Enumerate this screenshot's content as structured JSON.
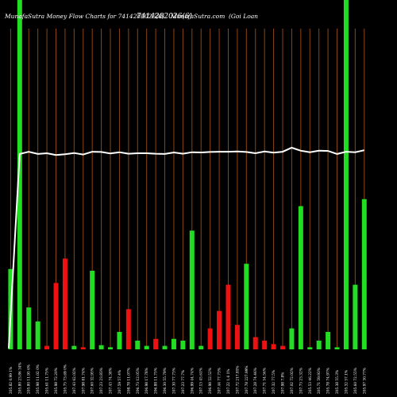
{
  "title": {
    "left": "MunafaSutra  Money Flow  Charts for 7414282026(6)",
    "overlap": "7414282026(6)",
    "site": "MunafaSutra.com",
    "right": "(Goi   Loan"
  },
  "colors": {
    "background": "#000000",
    "gridline": "#8b4513",
    "up": "#22dd22",
    "down": "#ee1111",
    "line": "#ffffff",
    "text": "#ffffff"
  },
  "chart_data": {
    "type": "bar",
    "price_line": [
      0.4,
      77.5,
      78.4,
      77.5,
      77.8,
      77.1,
      77.4,
      77.9,
      77.3,
      78.4,
      78.3,
      77.7,
      78.2,
      77.6,
      77.8,
      77.8,
      77.6,
      77.5,
      78.1,
      77.6,
      78.2,
      78.1,
      78.3,
      78.4,
      78.4,
      78.5,
      78.3,
      77.8,
      78.5,
      78.0,
      78.4,
      80.0,
      78.8,
      78.2,
      78.8,
      78.7,
      77.5,
      78.4,
      78.2,
      79.0
    ],
    "bars": [
      {
        "v": 23,
        "c": "up"
      },
      {
        "v": 100,
        "c": "up"
      },
      {
        "v": 12,
        "c": "up"
      },
      {
        "v": 8,
        "c": "up"
      },
      {
        "v": 1,
        "c": "down"
      },
      {
        "v": 19,
        "c": "down"
      },
      {
        "v": 26,
        "c": "down"
      },
      {
        "v": 1,
        "c": "up"
      },
      {
        "v": 0.6,
        "c": "down"
      },
      {
        "v": 22.5,
        "c": "up"
      },
      {
        "v": 1.2,
        "c": "up"
      },
      {
        "v": 0.6,
        "c": "up"
      },
      {
        "v": 5,
        "c": "up"
      },
      {
        "v": 11.5,
        "c": "down"
      },
      {
        "v": 2.5,
        "c": "up"
      },
      {
        "v": 1,
        "c": "up"
      },
      {
        "v": 3,
        "c": "down"
      },
      {
        "v": 1,
        "c": "up"
      },
      {
        "v": 3,
        "c": "up"
      },
      {
        "v": 2.5,
        "c": "up"
      },
      {
        "v": 34,
        "c": "up"
      },
      {
        "v": 1,
        "c": "up"
      },
      {
        "v": 6,
        "c": "down"
      },
      {
        "v": 11,
        "c": "down"
      },
      {
        "v": 18.5,
        "c": "down"
      },
      {
        "v": 7,
        "c": "down"
      },
      {
        "v": 24.5,
        "c": "up"
      },
      {
        "v": 3.5,
        "c": "down"
      },
      {
        "v": 2.5,
        "c": "down"
      },
      {
        "v": 1.5,
        "c": "down"
      },
      {
        "v": 1,
        "c": "down"
      },
      {
        "v": 6,
        "c": "up"
      },
      {
        "v": 41,
        "c": "up"
      },
      {
        "v": 0.6,
        "c": "up"
      },
      {
        "v": 2.5,
        "c": "up"
      },
      {
        "v": 5,
        "c": "up"
      },
      {
        "v": 0.6,
        "c": "up"
      },
      {
        "v": 100,
        "c": "up"
      },
      {
        "v": 18.5,
        "c": "up"
      },
      {
        "v": 43,
        "c": "up"
      }
    ],
    "categories": [
      "205.82 0.99 1%",
      "205.80 23.86 34%",
      "205.80 11.95 6%",
      "205.98 11.02 0%",
      "205.61 11.75%",
      "205.98 72.20%",
      "205.75 73.69 0%",
      "207.43 62.02%",
      "207.98 81.74%",
      "207.60 32.95%",
      "207.23 23.83%",
      "207.43 74.38%",
      "207.59 57.4%",
      "208.78 11.07%",
      "206.73 12.05%",
      "206.98 17.78%",
      "206.88 11.75%",
      "206.30 55.79%",
      "207.30 77.73%",
      "207.23 77.7%",
      "206.99 44.74%",
      "207.13 45.61%",
      "206.98 52.52%",
      "207.44 77.73%",
      "207.22 1.6 1%",
      "207.72 217.85%",
      "207.78 227.99%",
      "207.28 74.46%",
      "207.71 54.56%",
      "207.32 77.5%",
      "207.98 7.8%",
      "207.02 72.02%",
      "207.73 23.32%",
      "205.53 46.22%",
      "205.71 59.93%",
      "205.78 74.97%",
      "205.38 55.3%",
      "205.32 57.1%",
      "205.60 72.55%",
      "205.97 30.77%"
    ]
  }
}
